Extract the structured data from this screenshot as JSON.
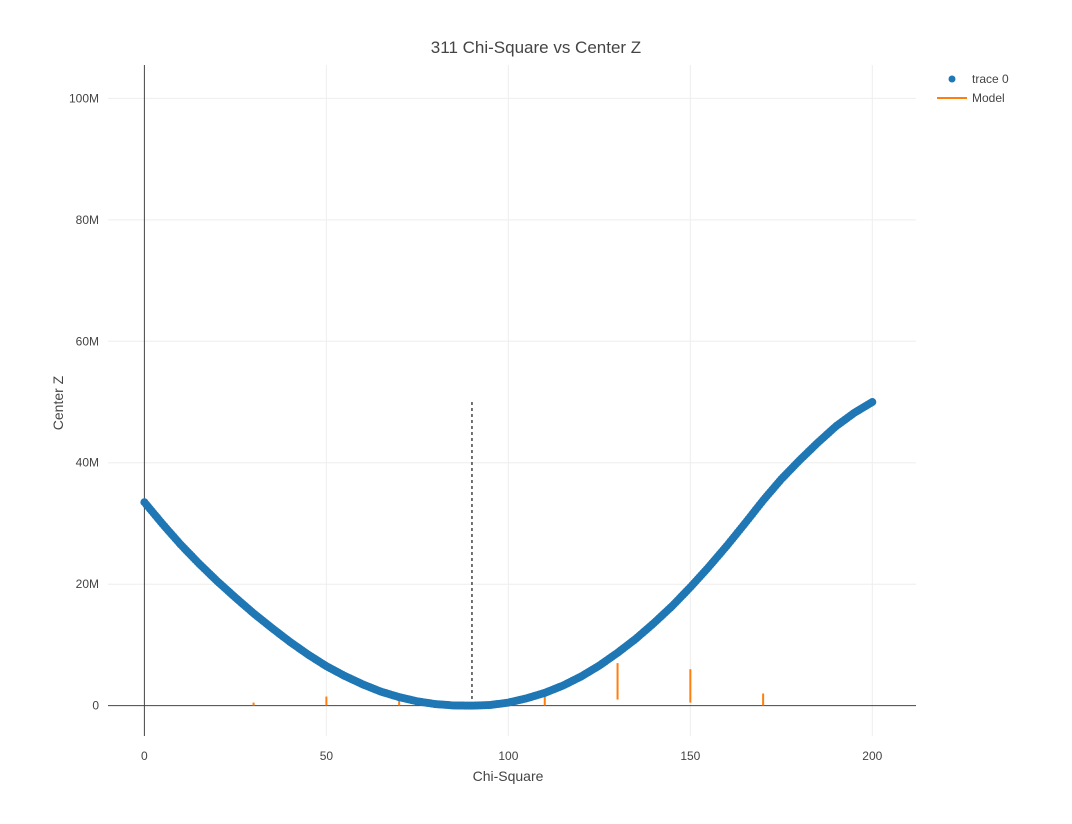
{
  "chart_data": {
    "type": "scatter",
    "title": "311 Chi-Square vs Center Z",
    "xlabel": "Chi-Square",
    "ylabel": "Center Z",
    "xlim": [
      -10,
      212
    ],
    "ylim": [
      -5000000,
      105500000
    ],
    "x_ticks": [
      0,
      50,
      100,
      150,
      200
    ],
    "y_ticks": [
      {
        "value": 0,
        "label": "0"
      },
      {
        "value": 20000000,
        "label": "20M"
      },
      {
        "value": 40000000,
        "label": "40M"
      },
      {
        "value": 60000000,
        "label": "60M"
      },
      {
        "value": 80000000,
        "label": "80M"
      },
      {
        "value": 100000000,
        "label": "100M"
      }
    ],
    "grid": true,
    "legend_position": "top-right",
    "series": [
      {
        "name": "trace 0",
        "kind": "markers",
        "color": "#1f77b4",
        "x": [
          0,
          5,
          10,
          15,
          20,
          25,
          30,
          35,
          40,
          45,
          50,
          55,
          60,
          65,
          70,
          75,
          80,
          85,
          90,
          95,
          100,
          105,
          110,
          115,
          120,
          125,
          130,
          135,
          140,
          145,
          150,
          155,
          160,
          165,
          170,
          175,
          180,
          185,
          190,
          195,
          200
        ],
        "y": [
          33500000,
          29900000,
          26500000,
          23400000,
          20500000,
          17800000,
          15200000,
          12800000,
          10500000,
          8400000,
          6500000,
          4900000,
          3500000,
          2300000,
          1400000,
          700000,
          250000,
          30000,
          0,
          100000,
          500000,
          1200000,
          2100000,
          3300000,
          4800000,
          6600000,
          8700000,
          11000000,
          13600000,
          16400000,
          19500000,
          22800000,
          26300000,
          30000000,
          33800000,
          37300000,
          40400000,
          43300000,
          46000000,
          48200000,
          50000000
        ]
      },
      {
        "name": "Model",
        "kind": "segments",
        "color": "#ff7f0e",
        "segments": [
          {
            "x": 30,
            "y0": 0,
            "y1": 500000
          },
          {
            "x": 50,
            "y0": 0,
            "y1": 1500000
          },
          {
            "x": 70,
            "y0": 0,
            "y1": 1000000
          },
          {
            "x": 110,
            "y0": 0,
            "y1": 2000000
          },
          {
            "x": 130,
            "y0": 1000000,
            "y1": 7000000
          },
          {
            "x": 150,
            "y0": 500000,
            "y1": 6000000
          },
          {
            "x": 170,
            "y0": 0,
            "y1": 2000000
          }
        ]
      }
    ],
    "reference_line": {
      "x": 90,
      "y0": 0,
      "y1": 50000000,
      "color": "#444444",
      "style": "dotted"
    }
  }
}
